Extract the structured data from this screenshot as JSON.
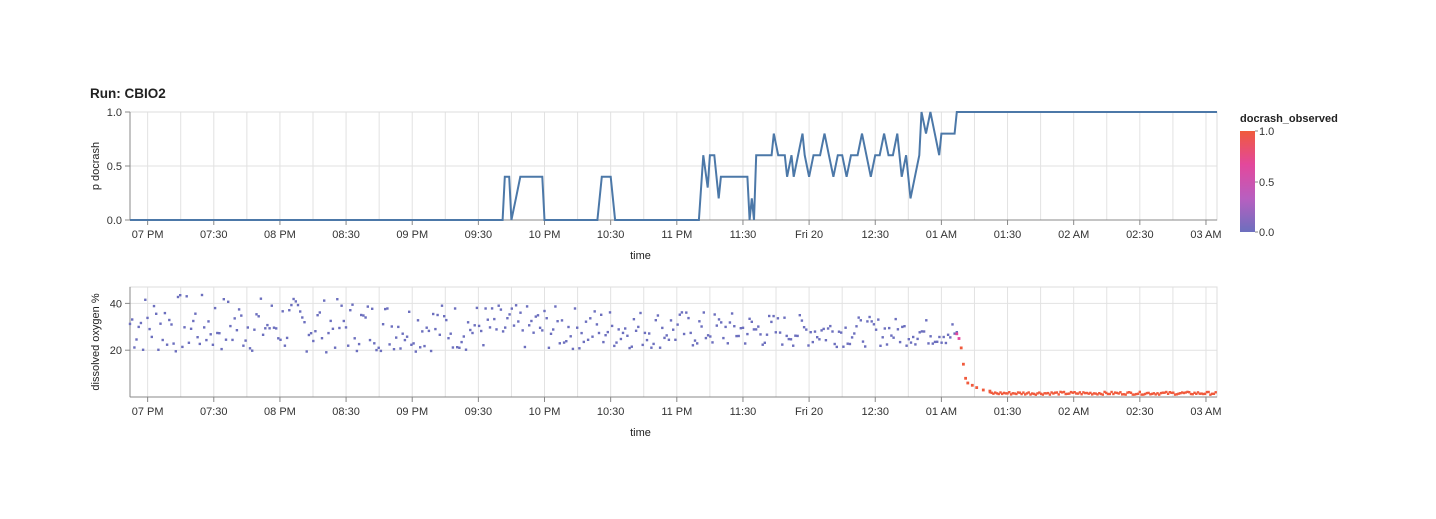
{
  "title": "Run: CBIO2",
  "legend": {
    "title": "docrash_observed",
    "labels": [
      "1.0",
      "0.5",
      "0.0"
    ],
    "colors": [
      "#f05a3c",
      "#e3489c",
      "#b85fc0",
      "#6c6fbe"
    ]
  },
  "colors": {
    "line": "#4c78a8",
    "grid": "#e2e2e2",
    "axis": "#888888"
  },
  "x_axis": {
    "title": "time",
    "ticks": [
      "07 PM",
      "07:30",
      "08 PM",
      "08:30",
      "09 PM",
      "09:30",
      "10 PM",
      "10:30",
      "11 PM",
      "11:30",
      "Fri 20",
      "12:30",
      "01 AM",
      "01:30",
      "02 AM",
      "02:30",
      "03 AM"
    ]
  },
  "chart_data": [
    {
      "type": "line",
      "name": "p_docrash",
      "xlabel": "time",
      "ylabel": "p docrash",
      "ylim": [
        0,
        1
      ],
      "yticks": [
        "0.0",
        "0.5",
        "1.0"
      ],
      "grid": true,
      "x_start": "18:52",
      "x_end": "03:05",
      "points": [
        [
          "18:52",
          0
        ],
        [
          "21:41",
          0
        ],
        [
          "21:42",
          0.4
        ],
        [
          "21:44",
          0.4
        ],
        [
          "21:45",
          0
        ],
        [
          "21:47",
          0.2
        ],
        [
          "21:49",
          0.4
        ],
        [
          "21:59",
          0.4
        ],
        [
          "22:00",
          0
        ],
        [
          "22:24",
          0
        ],
        [
          "22:26",
          0.4
        ],
        [
          "22:30",
          0.4
        ],
        [
          "22:32",
          0
        ],
        [
          "23:10",
          0
        ],
        [
          "23:12",
          0.6
        ],
        [
          "23:14",
          0.3
        ],
        [
          "23:15",
          0.6
        ],
        [
          "23:17",
          0.6
        ],
        [
          "23:19",
          0.2
        ],
        [
          "23:20",
          0.4
        ],
        [
          "23:32",
          0.4
        ],
        [
          "23:33",
          0
        ],
        [
          "23:34",
          0.2
        ],
        [
          "23:35",
          0
        ],
        [
          "23:36",
          0.6
        ],
        [
          "23:43",
          0.6
        ],
        [
          "23:44",
          0.8
        ],
        [
          "23:46",
          0.6
        ],
        [
          "23:49",
          0.6
        ],
        [
          "23:50",
          0.4
        ],
        [
          "23:52",
          0.6
        ],
        [
          "23:53",
          0.4
        ],
        [
          "23:55",
          0.6
        ],
        [
          "23:57",
          0.8
        ],
        [
          "23:58",
          0.6
        ],
        [
          "00:00",
          0.4
        ],
        [
          "00:02",
          0.6
        ],
        [
          "00:05",
          0.6
        ],
        [
          "00:07",
          0.8
        ],
        [
          "00:09",
          0.6
        ],
        [
          "00:11",
          0.4
        ],
        [
          "00:13",
          0.6
        ],
        [
          "00:15",
          0.6
        ],
        [
          "00:17",
          0.4
        ],
        [
          "00:19",
          0.6
        ],
        [
          "00:22",
          0.6
        ],
        [
          "00:24",
          0.8
        ],
        [
          "00:26",
          0.6
        ],
        [
          "00:28",
          0.4
        ],
        [
          "00:30",
          0.6
        ],
        [
          "00:32",
          0.6
        ],
        [
          "00:34",
          0.8
        ],
        [
          "00:36",
          0.6
        ],
        [
          "00:38",
          0.6
        ],
        [
          "00:40",
          0.8
        ],
        [
          "00:42",
          0.4
        ],
        [
          "00:44",
          0.6
        ],
        [
          "00:46",
          0.2
        ],
        [
          "00:48",
          0.4
        ],
        [
          "00:50",
          0.6
        ],
        [
          "00:51",
          1.0
        ],
        [
          "00:53",
          0.8
        ],
        [
          "00:55",
          1.0
        ],
        [
          "00:57",
          0.8
        ],
        [
          "00:59",
          0.6
        ],
        [
          "01:00",
          0.8
        ],
        [
          "01:06",
          0.8
        ],
        [
          "01:07",
          1.0
        ],
        [
          "03:05",
          1.0
        ]
      ]
    },
    {
      "type": "scatter",
      "name": "dissolved_oxygen",
      "xlabel": "time",
      "ylabel": "dissolved oxygen %",
      "ylim": [
        0,
        47
      ],
      "yticks": [
        "20",
        "40"
      ],
      "grid": true,
      "color_field": "docrash_observed",
      "crash_time": "01:09",
      "x_start": "18:52",
      "x_end": "03:05",
      "before_crash": {
        "time_range": [
          "18:52",
          "01:07"
        ],
        "point_count": 380,
        "oscillation": "between approx 18 and 45, slowly narrowing toward 22-33 near 01:00",
        "observed": 0.0
      },
      "drop": [
        [
          "01:07",
          27
        ],
        [
          "01:08",
          25
        ],
        [
          "01:09",
          21
        ],
        [
          "01:10",
          14
        ],
        [
          "01:11",
          8
        ],
        [
          "01:12",
          6
        ],
        [
          "01:14",
          5
        ],
        [
          "01:16",
          4
        ],
        [
          "01:19",
          3
        ],
        [
          "01:22",
          2.5
        ]
      ],
      "after_crash": {
        "time_range": [
          "01:22",
          "03:05"
        ],
        "level": "approx 1 to 2",
        "observed": 1.0
      }
    }
  ]
}
